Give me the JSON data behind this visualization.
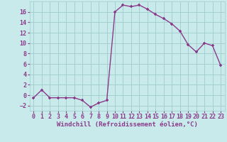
{
  "x": [
    0,
    1,
    2,
    3,
    4,
    5,
    6,
    7,
    8,
    9,
    10,
    11,
    12,
    13,
    14,
    15,
    16,
    17,
    18,
    19,
    20,
    21,
    22,
    23
  ],
  "y": [
    -0.5,
    1.0,
    -0.5,
    -0.5,
    -0.5,
    -0.5,
    -1.0,
    -2.3,
    -1.5,
    -1.0,
    16.0,
    17.3,
    17.0,
    17.3,
    16.5,
    15.5,
    14.7,
    13.7,
    12.3,
    9.7,
    8.3,
    10.0,
    9.5,
    5.7
  ],
  "line_color": "#8b3a8b",
  "marker": "+",
  "bg_color": "#c8eaea",
  "grid_color": "#a0cccc",
  "xlabel": "Windchill (Refroidissement éolien,°C)",
  "tick_color": "#8b3a8b",
  "yticks": [
    -2,
    0,
    2,
    4,
    6,
    8,
    10,
    12,
    14,
    16
  ],
  "xticks": [
    0,
    1,
    2,
    3,
    4,
    5,
    6,
    7,
    8,
    9,
    10,
    11,
    12,
    13,
    14,
    15,
    16,
    17,
    18,
    19,
    20,
    21,
    22,
    23
  ],
  "ylim": [
    -3.0,
    18.0
  ],
  "xlim": [
    -0.5,
    23.5
  ],
  "markersize": 3.5,
  "linewidth": 1.0,
  "tick_fontsize": 6,
  "xlabel_fontsize": 6.5
}
